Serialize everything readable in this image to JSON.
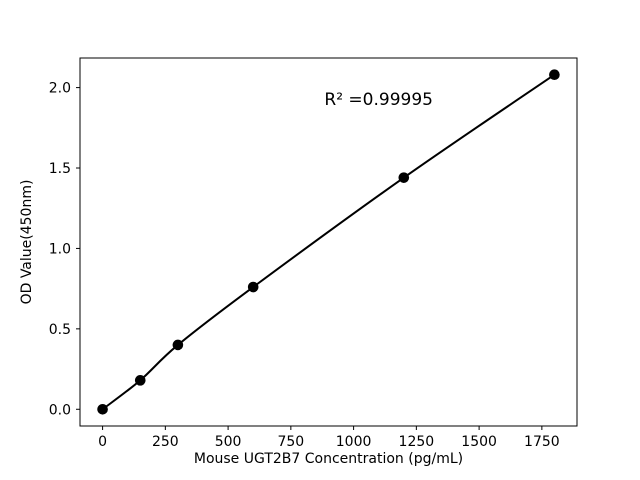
{
  "chart_data": {
    "type": "line",
    "title": "",
    "xlabel": "Mouse UGT2B7 Concentration (pg/mL)",
    "ylabel": "OD Value(450nm)",
    "series": [
      {
        "name": "standard-curve",
        "x": [
          0,
          150,
          300,
          600,
          1200,
          1800
        ],
        "y": [
          0.0,
          0.18,
          0.4,
          0.76,
          1.44,
          2.08
        ]
      }
    ],
    "annotation": {
      "text": "R² =0.99995",
      "x": 1100,
      "y": 1.92
    },
    "xticks": [
      0,
      250,
      500,
      750,
      1000,
      1250,
      1500,
      1750
    ],
    "xtick_labels": [
      "0",
      "250",
      "500",
      "750",
      "1000",
      "1250",
      "1500",
      "1750"
    ],
    "yticks": [
      0.0,
      0.5,
      1.0,
      1.5,
      2.0
    ],
    "ytick_labels": [
      "0.0",
      "0.5",
      "1.0",
      "1.5",
      "2.0"
    ],
    "xlim": [
      -90,
      1890
    ],
    "ylim": [
      -0.104,
      2.184
    ],
    "grid": false,
    "legend": null,
    "line_color": "#000000",
    "marker_color": "#000000",
    "marker": "circle",
    "background": "#ffffff"
  }
}
